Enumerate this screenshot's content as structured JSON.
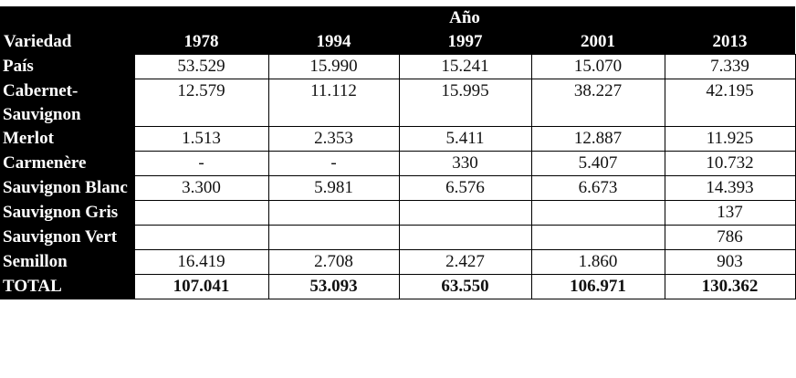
{
  "header": {
    "group_label": "Año",
    "first_col": "Variedad",
    "years": [
      "1978",
      "1994",
      "1997",
      "2001",
      "2013"
    ]
  },
  "rows": [
    {
      "name": "País",
      "values": [
        "53.529",
        "15.990",
        "15.241",
        "15.070",
        "7.339"
      ]
    },
    {
      "name": "Cabernet- Sauvignon",
      "values": [
        "12.579",
        "11.112",
        "15.995",
        "38.227",
        "42.195"
      ]
    },
    {
      "name": "Merlot",
      "values": [
        "1.513",
        "2.353",
        "5.411",
        "12.887",
        "11.925"
      ]
    },
    {
      "name": "Carmenère",
      "values": [
        "-",
        "-",
        "330",
        "5.407",
        "10.732"
      ]
    },
    {
      "name": "Sauvignon Blanc",
      "values": [
        "3.300",
        "5.981",
        "6.576",
        "6.673",
        "14.393"
      ]
    },
    {
      "name": "Sauvignon Gris",
      "values": [
        "",
        "",
        "",
        "",
        "137"
      ]
    },
    {
      "name": "Sauvignon Vert",
      "values": [
        "",
        "",
        "",
        "",
        "786"
      ]
    },
    {
      "name": "Semillon",
      "values": [
        "16.419",
        "2.708",
        "2.427",
        "1.860",
        "903"
      ]
    }
  ],
  "total": {
    "name": "TOTAL",
    "values": [
      "107.041",
      "53.093",
      "63.550",
      "106.971",
      "130.362"
    ]
  }
}
